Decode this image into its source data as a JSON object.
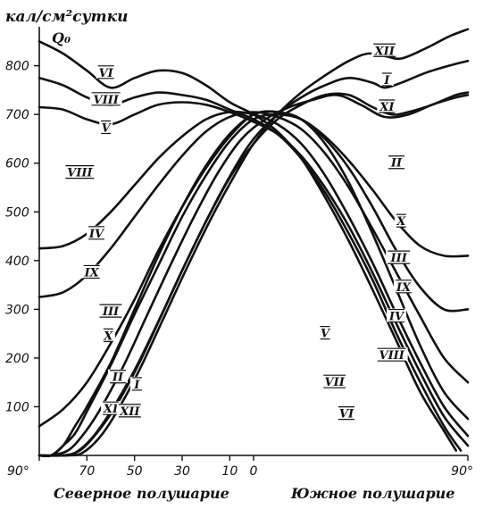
{
  "chart_data": {
    "type": "line",
    "title": "",
    "ylabel_units": "кал/см²сутки",
    "ylabel_symbol": "Q₀",
    "x_left_label": "Северное полушарие",
    "x_right_label": "Южное полушарие",
    "x_tick_labels": [
      "90°",
      "70",
      "50",
      "30",
      "10",
      "0",
      "90°"
    ],
    "y_ticks": [
      100,
      200,
      300,
      400,
      500,
      600,
      700,
      800
    ],
    "xlim": [
      -90,
      90
    ],
    "ylim": [
      0,
      880
    ],
    "x_scale_note": "x axis in degrees latitude; negative = northern hemisphere, positive = southern hemisphere",
    "series": [
      {
        "label": "VI",
        "points": [
          [
            -90,
            850
          ],
          [
            -80,
            825
          ],
          [
            -70,
            790
          ],
          [
            -60,
            755
          ],
          [
            -50,
            775
          ],
          [
            -40,
            790
          ],
          [
            -30,
            785
          ],
          [
            -20,
            760
          ],
          [
            -10,
            725
          ],
          [
            0,
            700
          ],
          [
            10,
            665
          ],
          [
            20,
            610
          ],
          [
            30,
            530
          ],
          [
            40,
            440
          ],
          [
            50,
            340
          ],
          [
            60,
            235
          ],
          [
            70,
            130
          ],
          [
            80,
            50
          ],
          [
            85,
            10
          ]
        ]
      },
      {
        "label": "VII",
        "points": [
          [
            -90,
            775
          ],
          [
            -80,
            760
          ],
          [
            -70,
            735
          ],
          [
            -60,
            720
          ],
          [
            -50,
            735
          ],
          [
            -40,
            745
          ],
          [
            -30,
            740
          ],
          [
            -20,
            730
          ],
          [
            -10,
            710
          ],
          [
            0,
            690
          ],
          [
            10,
            660
          ],
          [
            20,
            610
          ],
          [
            30,
            540
          ],
          [
            40,
            455
          ],
          [
            50,
            360
          ],
          [
            60,
            250
          ],
          [
            70,
            150
          ],
          [
            80,
            60
          ],
          [
            87,
            10
          ]
        ]
      },
      {
        "label": "V",
        "points": [
          [
            -90,
            715
          ],
          [
            -80,
            710
          ],
          [
            -70,
            690
          ],
          [
            -60,
            680
          ],
          [
            -50,
            700
          ],
          [
            -40,
            720
          ],
          [
            -30,
            725
          ],
          [
            -20,
            720
          ],
          [
            -10,
            705
          ],
          [
            0,
            685
          ],
          [
            10,
            660
          ],
          [
            20,
            615
          ],
          [
            30,
            550
          ],
          [
            40,
            470
          ],
          [
            50,
            375
          ],
          [
            60,
            270
          ],
          [
            70,
            170
          ],
          [
            80,
            80
          ],
          [
            90,
            20
          ]
        ]
      },
      {
        "label": "VIII",
        "points": [
          [
            -90,
            0
          ],
          [
            -85,
            0
          ],
          [
            -80,
            20
          ],
          [
            -75,
            60
          ],
          [
            -70,
            100
          ],
          [
            -60,
            190
          ],
          [
            -50,
            300
          ],
          [
            -40,
            410
          ],
          [
            -30,
            510
          ],
          [
            -20,
            595
          ],
          [
            -10,
            660
          ],
          [
            0,
            700
          ],
          [
            10,
            705
          ],
          [
            20,
            690
          ],
          [
            30,
            640
          ],
          [
            40,
            560
          ],
          [
            50,
            455
          ],
          [
            60,
            340
          ],
          [
            70,
            225
          ],
          [
            80,
            130
          ],
          [
            90,
            75
          ]
        ]
      },
      {
        "label": "IV",
        "points": [
          [
            -90,
            425
          ],
          [
            -80,
            430
          ],
          [
            -70,
            455
          ],
          [
            -60,
            500
          ],
          [
            -50,
            555
          ],
          [
            -40,
            610
          ],
          [
            -30,
            655
          ],
          [
            -20,
            690
          ],
          [
            -10,
            705
          ],
          [
            0,
            700
          ],
          [
            10,
            680
          ],
          [
            20,
            640
          ],
          [
            30,
            575
          ],
          [
            40,
            490
          ],
          [
            50,
            395
          ],
          [
            60,
            290
          ],
          [
            70,
            190
          ],
          [
            80,
            100
          ],
          [
            90,
            40
          ]
        ]
      },
      {
        "label": "IX",
        "points": [
          [
            -90,
            325
          ],
          [
            -80,
            335
          ],
          [
            -70,
            370
          ],
          [
            -60,
            425
          ],
          [
            -50,
            490
          ],
          [
            -40,
            555
          ],
          [
            -30,
            615
          ],
          [
            -20,
            665
          ],
          [
            -10,
            695
          ],
          [
            0,
            705
          ],
          [
            10,
            695
          ],
          [
            20,
            670
          ],
          [
            30,
            620
          ],
          [
            40,
            550
          ],
          [
            50,
            465
          ],
          [
            60,
            375
          ],
          [
            70,
            285
          ],
          [
            80,
            200
          ],
          [
            90,
            150
          ]
        ]
      },
      {
        "label": "III",
        "points": [
          [
            -90,
            60
          ],
          [
            -80,
            95
          ],
          [
            -70,
            150
          ],
          [
            -60,
            230
          ],
          [
            -50,
            320
          ],
          [
            -40,
            420
          ],
          [
            -30,
            510
          ],
          [
            -20,
            590
          ],
          [
            -10,
            655
          ],
          [
            0,
            700
          ],
          [
            10,
            705
          ],
          [
            20,
            690
          ],
          [
            30,
            650
          ],
          [
            40,
            590
          ],
          [
            50,
            510
          ],
          [
            60,
            420
          ],
          [
            70,
            345
          ],
          [
            80,
            300
          ],
          [
            90,
            300
          ]
        ]
      },
      {
        "label": "X",
        "points": [
          [
            -90,
            0
          ],
          [
            -85,
            0
          ],
          [
            -80,
            20
          ],
          [
            -75,
            45
          ],
          [
            -70,
            90
          ],
          [
            -60,
            185
          ],
          [
            -50,
            290
          ],
          [
            -40,
            390
          ],
          [
            -30,
            490
          ],
          [
            -20,
            575
          ],
          [
            -10,
            645
          ],
          [
            0,
            690
          ],
          [
            10,
            700
          ],
          [
            20,
            690
          ],
          [
            30,
            655
          ],
          [
            40,
            605
          ],
          [
            50,
            545
          ],
          [
            60,
            480
          ],
          [
            70,
            430
          ],
          [
            80,
            410
          ],
          [
            90,
            410
          ]
        ]
      },
      {
        "label": "II",
        "points": [
          [
            -90,
            0
          ],
          [
            -85,
            0
          ],
          [
            -78,
            10
          ],
          [
            -72,
            40
          ],
          [
            -65,
            90
          ],
          [
            -55,
            180
          ],
          [
            -45,
            285
          ],
          [
            -35,
            390
          ],
          [
            -25,
            490
          ],
          [
            -15,
            580
          ],
          [
            -5,
            650
          ],
          [
            5,
            690
          ],
          [
            15,
            715
          ],
          [
            25,
            730
          ],
          [
            35,
            740
          ],
          [
            45,
            720
          ],
          [
            55,
            695
          ],
          [
            65,
            700
          ],
          [
            75,
            720
          ],
          [
            85,
            735
          ],
          [
            90,
            740
          ]
        ]
      },
      {
        "label": "I",
        "points": [
          [
            -90,
            0
          ],
          [
            -80,
            0
          ],
          [
            -73,
            10
          ],
          [
            -66,
            45
          ],
          [
            -58,
            100
          ],
          [
            -48,
            190
          ],
          [
            -38,
            295
          ],
          [
            -28,
            400
          ],
          [
            -18,
            500
          ],
          [
            -8,
            590
          ],
          [
            0,
            650
          ],
          [
            10,
            700
          ],
          [
            20,
            735
          ],
          [
            30,
            760
          ],
          [
            40,
            775
          ],
          [
            50,
            765
          ],
          [
            55,
            755
          ],
          [
            62,
            765
          ],
          [
            72,
            785
          ],
          [
            82,
            800
          ],
          [
            90,
            810
          ]
        ]
      },
      {
        "label": "XII",
        "points": [
          [
            -90,
            0
          ],
          [
            -78,
            0
          ],
          [
            -72,
            5
          ],
          [
            -65,
            35
          ],
          [
            -58,
            85
          ],
          [
            -48,
            175
          ],
          [
            -38,
            280
          ],
          [
            -28,
            385
          ],
          [
            -18,
            485
          ],
          [
            -8,
            575
          ],
          [
            0,
            640
          ],
          [
            10,
            700
          ],
          [
            20,
            745
          ],
          [
            30,
            780
          ],
          [
            40,
            810
          ],
          [
            48,
            825
          ],
          [
            55,
            820
          ],
          [
            62,
            815
          ],
          [
            72,
            835
          ],
          [
            82,
            860
          ],
          [
            90,
            875
          ]
        ]
      },
      {
        "label": "XI",
        "points": [
          [
            -90,
            0
          ],
          [
            -80,
            0
          ],
          [
            -75,
            5
          ],
          [
            -68,
            35
          ],
          [
            -60,
            90
          ],
          [
            -50,
            175
          ],
          [
            -40,
            275
          ],
          [
            -30,
            380
          ],
          [
            -20,
            480
          ],
          [
            -10,
            570
          ],
          [
            0,
            640
          ],
          [
            10,
            690
          ],
          [
            20,
            720
          ],
          [
            30,
            740
          ],
          [
            40,
            740
          ],
          [
            50,
            715
          ],
          [
            58,
            700
          ],
          [
            65,
            705
          ],
          [
            75,
            720
          ],
          [
            85,
            740
          ],
          [
            90,
            745
          ]
        ]
      }
    ],
    "curve_labels": [
      {
        "text": "VI",
        "x": -62,
        "y": 785
      },
      {
        "text": "VIII",
        "x": -62,
        "y": 730
      },
      {
        "text": "V",
        "x": -62,
        "y": 672
      },
      {
        "text": "VIII",
        "x": -73,
        "y": 580
      },
      {
        "text": "IV",
        "x": -66,
        "y": 455
      },
      {
        "text": "IX",
        "x": -68,
        "y": 375
      },
      {
        "text": "III",
        "x": -60,
        "y": 295
      },
      {
        "text": "X",
        "x": -61,
        "y": 245
      },
      {
        "text": "II",
        "x": -57,
        "y": 160
      },
      {
        "text": "I",
        "x": -49,
        "y": 145
      },
      {
        "text": "XI",
        "x": -60,
        "y": 95
      },
      {
        "text": "XII",
        "x": -52,
        "y": 90
      },
      {
        "text": "XII",
        "x": 55,
        "y": 830
      },
      {
        "text": "I",
        "x": 56,
        "y": 770
      },
      {
        "text": "XI",
        "x": 56,
        "y": 715
      },
      {
        "text": "II",
        "x": 60,
        "y": 600
      },
      {
        "text": "X",
        "x": 62,
        "y": 480
      },
      {
        "text": "III",
        "x": 61,
        "y": 405
      },
      {
        "text": "IX",
        "x": 63,
        "y": 345
      },
      {
        "text": "IV",
        "x": 60,
        "y": 285
      },
      {
        "text": "V",
        "x": 30,
        "y": 250
      },
      {
        "text": "VIII",
        "x": 58,
        "y": 205
      },
      {
        "text": "VII",
        "x": 34,
        "y": 150
      },
      {
        "text": "VI",
        "x": 39,
        "y": 85
      }
    ],
    "grid": false,
    "legend": "none"
  }
}
